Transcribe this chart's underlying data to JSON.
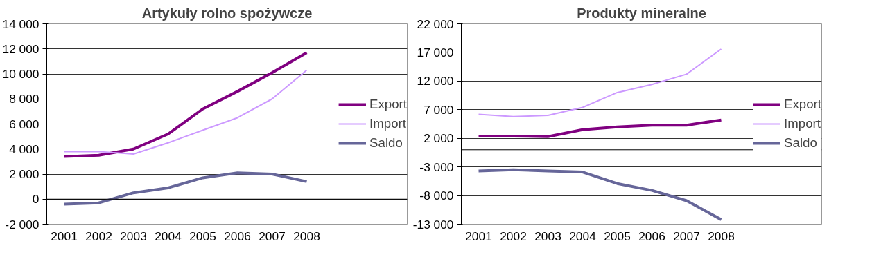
{
  "chart_data": [
    {
      "type": "line",
      "title": "Artykuły rolno spożywcze",
      "categories": [
        "2001",
        "2002",
        "2003",
        "2004",
        "2005",
        "2006",
        "2007",
        "2008"
      ],
      "series": [
        {
          "name": "Export",
          "color": "#800080",
          "values": [
            3400,
            3500,
            4000,
            5200,
            7200,
            8600,
            10100,
            11700
          ]
        },
        {
          "name": "Import",
          "color": "#cc99ff",
          "values": [
            3800,
            3800,
            3600,
            4500,
            5500,
            6500,
            8000,
            10300
          ]
        },
        {
          "name": "Saldo",
          "color": "#666699",
          "values": [
            -400,
            -300,
            500,
            900,
            1700,
            2100,
            2000,
            1400
          ]
        }
      ],
      "ylim": [
        -2000,
        14000
      ],
      "yticks": [
        {
          "value": -2000,
          "label": "-2 000"
        },
        0,
        {
          "value": 2000,
          "label": "2 000"
        },
        {
          "value": 4000,
          "label": "4 000"
        },
        {
          "value": 6000,
          "label": "6 000"
        },
        {
          "value": 8000,
          "label": "8 000"
        },
        {
          "value": 10000,
          "label": "10 000"
        },
        {
          "value": 12000,
          "label": "12 000"
        },
        {
          "value": 14000,
          "label": "14 000"
        }
      ],
      "ref_lines": [
        {
          "axis": "y",
          "value": 0
        }
      ],
      "grid": "y",
      "legend": "right"
    },
    {
      "type": "line",
      "title": "Produkty mineralne",
      "categories": [
        "2001",
        "2002",
        "2003",
        "2004",
        "2005",
        "2006",
        "2007",
        "2008"
      ],
      "series": [
        {
          "name": "Export",
          "color": "#800080",
          "values": [
            2400,
            2400,
            2300,
            3500,
            4000,
            4300,
            4300,
            5200
          ]
        },
        {
          "name": "Import",
          "color": "#cc99ff",
          "values": [
            6200,
            5800,
            6000,
            7400,
            10000,
            11400,
            13200,
            17600
          ]
        },
        {
          "name": "Saldo",
          "color": "#666699",
          "values": [
            -3700,
            -3500,
            -3700,
            -3900,
            -5900,
            -7100,
            -8900,
            -12200
          ]
        }
      ],
      "ylim": [
        -13000,
        22000
      ],
      "yticks": [
        {
          "value": -13000,
          "label": "-13 000"
        },
        {
          "value": -8000,
          "label": "-8 000"
        },
        {
          "value": -3000,
          "label": "-3 000"
        },
        {
          "value": 2000,
          "label": "2 000"
        },
        {
          "value": 7000,
          "label": "7 000"
        },
        {
          "value": 12000,
          "label": "12 000"
        },
        {
          "value": 17000,
          "label": "17 000"
        },
        {
          "value": 22000,
          "label": "22 000"
        }
      ],
      "ref_lines": [
        {
          "axis": "y",
          "value": 0
        }
      ],
      "grid": "y",
      "legend": "right"
    }
  ]
}
